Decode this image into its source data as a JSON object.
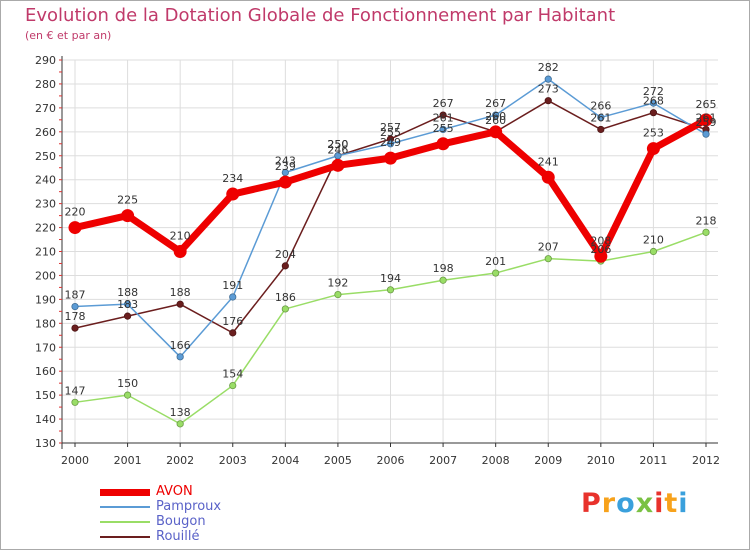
{
  "chart_data": {
    "type": "line",
    "title": "Evolution de la Dotation Globale de Fonctionnement par Habitant",
    "subtitle": "(en € et par an)",
    "xlabel": "",
    "ylabel": "",
    "x": [
      "2000",
      "2001",
      "2002",
      "2003",
      "2004",
      "2005",
      "2006",
      "2007",
      "2008",
      "2009",
      "2010",
      "2011",
      "2012"
    ],
    "ylim": [
      130,
      290
    ],
    "yticks": [
      130,
      140,
      150,
      160,
      170,
      180,
      190,
      200,
      210,
      220,
      230,
      240,
      250,
      260,
      270,
      280,
      290
    ],
    "grid": true,
    "series": [
      {
        "name": "Rouillé",
        "color": "#6b1e1e",
        "values": [
          178,
          183,
          188,
          176,
          204,
          250,
          257,
          267,
          260,
          273,
          261,
          268,
          261
        ]
      },
      {
        "name": "Pamproux",
        "color": "#5b9bd5",
        "values": [
          187,
          188,
          166,
          191,
          243,
          250,
          255,
          261,
          267,
          282,
          266,
          272,
          259
        ]
      },
      {
        "name": "Bougon",
        "color": "#99dd66",
        "values": [
          147,
          150,
          138,
          154,
          186,
          192,
          194,
          198,
          201,
          207,
          206,
          210,
          218
        ]
      },
      {
        "name": "AVON",
        "color": "#ee0000",
        "values": [
          220,
          225,
          210,
          234,
          239,
          246,
          249,
          255,
          260,
          241,
          208,
          253,
          265
        ]
      }
    ]
  },
  "legend": [
    {
      "label": "AVON",
      "color": "#ee0000",
      "stroke": 7
    },
    {
      "label": "Pamproux",
      "color": "#5b9bd5",
      "stroke": 2
    },
    {
      "label": "Bougon",
      "color": "#99dd66",
      "stroke": 2
    },
    {
      "label": "Rouillé",
      "color": "#6b1e1e",
      "stroke": 2
    }
  ],
  "logo": {
    "text": "Proxiti",
    "colors": [
      "#e8322c",
      "#f7a21b",
      "#3aa0dc",
      "#7ac143",
      "#e8322c",
      "#f7a21b",
      "#3aa0dc"
    ]
  }
}
